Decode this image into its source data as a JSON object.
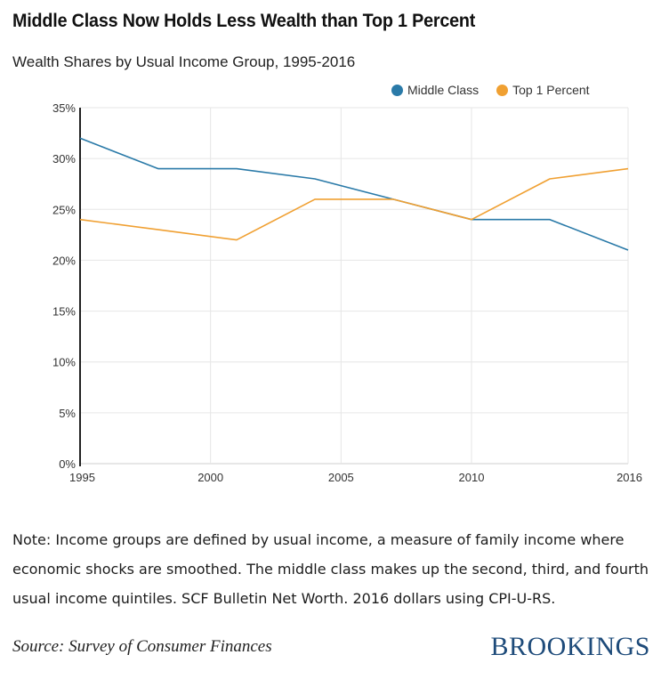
{
  "header": {
    "title": "Middle Class Now Holds Less Wealth than Top 1 Percent",
    "subtitle": "Wealth Shares by Usual Income Group, 1995-2016"
  },
  "legend": {
    "items": [
      {
        "label": "Middle Class",
        "color": "#2a7aa8"
      },
      {
        "label": "Top 1 Percent",
        "color": "#f0a032"
      }
    ]
  },
  "chart_data": {
    "type": "line",
    "xlim": [
      1995,
      2016
    ],
    "ylim": [
      0,
      35
    ],
    "x_ticks": [
      1995,
      2000,
      2005,
      2010,
      2016
    ],
    "y_ticks": [
      0,
      5,
      10,
      15,
      20,
      25,
      30,
      35
    ],
    "y_tick_format": "percent",
    "grid": true,
    "legend_position": "top-right",
    "series": [
      {
        "name": "Middle Class",
        "color": "#2a7aa8",
        "x": [
          1995,
          1998,
          2001,
          2004,
          2007,
          2010,
          2013,
          2016
        ],
        "y": [
          32,
          29,
          29,
          28,
          26,
          24,
          24,
          21
        ]
      },
      {
        "name": "Top 1 Percent",
        "color": "#f0a032",
        "x": [
          1995,
          1998,
          2001,
          2004,
          2007,
          2010,
          2013,
          2016
        ],
        "y": [
          24,
          23,
          22,
          26,
          26,
          24,
          28,
          29
        ]
      }
    ]
  },
  "footer": {
    "note": "Note: Income groups are defined by usual income, a measure of family income where economic shocks are smoothed. The middle class makes up the second, third, and fourth usual income quintiles. SCF Bulletin Net Worth. 2016 dollars using CPI-U-RS.",
    "source": "Source: Survey of Consumer Finances",
    "brand": "BROOKINGS"
  }
}
